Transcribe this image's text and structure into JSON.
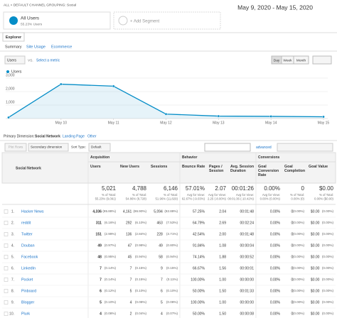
{
  "header": {
    "breadcrumb": "ALL » DEFAULT CHANNEL GROUPING: Social",
    "date_range": "May 9, 2020 - May 15, 2020"
  },
  "segments": {
    "name": "All Users",
    "share": "55.23% Users",
    "add": "+ Add Segment"
  },
  "tabs": [
    "Explorer"
  ],
  "subtabs": [
    "Summary",
    "Site Usage",
    "Ecommerce"
  ],
  "controls": {
    "metric": "Users",
    "vs": "VS.",
    "select": "Select a metric",
    "periods": [
      "Day",
      "Week",
      "Month"
    ]
  },
  "chart_data": {
    "type": "line",
    "categories": [
      null,
      "May 10",
      "May 11",
      "May 12",
      "May 13",
      "May 14",
      "May 15"
    ],
    "series": [
      {
        "name": "Users",
        "color": "#058dc7",
        "values": [
          80,
          2550,
          2400,
          330,
          180,
          160,
          130
        ]
      }
    ],
    "ylim": [
      0,
      3000
    ],
    "yticks": [
      {
        "value": 1000,
        "label": "1,000"
      },
      {
        "value": 2000,
        "label": "2,000"
      },
      {
        "value": 3000,
        "label": "3,000"
      }
    ],
    "grid": true
  },
  "dimension": {
    "label": "Primary Dimension:",
    "options": [
      "Social Network",
      "Landing Page",
      "Other"
    ]
  },
  "toolbar": {
    "plot_rows": "Plot Rows",
    "secondary": "Secondary dimension",
    "sort_label": "Sort Type:",
    "sort": "Default",
    "advanced": "advanced"
  },
  "table": {
    "dimension_header": "Social Network",
    "groups": [
      "Acquisition",
      "Behavior",
      "Conversions"
    ],
    "columns": [
      "Users",
      "New Users",
      "Sessions",
      "Bounce Rate",
      "Pages / Session",
      "Avg. Session Duration",
      "Goal Conversion Rate",
      "Goal Completions",
      "Goal Value"
    ],
    "totals": [
      [
        "5,021",
        "% of Total:",
        "55.23% (9,091)"
      ],
      [
        "4,788",
        "% of Total:",
        "54.86% (8,728)"
      ],
      [
        "6,146",
        "% of Total:",
        "51.96% (11,829)"
      ],
      [
        "57.01%",
        "Avg for View:",
        "62.67% (-9.03%)"
      ],
      [
        "2.07",
        "Avg for View:",
        "2.25 (-8.00%)"
      ],
      [
        "00:01:26",
        "Avg for View:",
        "00:01:36 (-10.42%)"
      ],
      [
        "0.00%",
        "Avg for View:",
        "0.00% (0.00%)"
      ],
      [
        "0",
        "% of Total:",
        "0.00% (0)"
      ],
      [
        "$0.00",
        "% of Total:",
        "0.00% ($0.00)"
      ]
    ],
    "rows": [
      {
        "index": "1.",
        "name": "Hacker News",
        "cells": [
          [
            "4,336",
            "(85.88%)"
          ],
          [
            "4,161",
            "(86.90%)"
          ],
          [
            "5,094",
            "(82.88%)"
          ],
          [
            "57.25%"
          ],
          [
            "2.04"
          ],
          [
            "00:01:48"
          ],
          [
            "0.00%"
          ],
          [
            "0",
            "(0.00%)"
          ],
          [
            "$0.00",
            "(0.00%)"
          ]
        ]
      },
      {
        "index": "2.",
        "name": "reddit",
        "cells": [
          [
            "311",
            "(6.16%)"
          ],
          [
            "292",
            "(6.10%)"
          ],
          [
            "463",
            "(7.53%)"
          ],
          [
            "64.79%"
          ],
          [
            "2.69"
          ],
          [
            "00:02:24"
          ],
          [
            "0.00%"
          ],
          [
            "0",
            "(0.00%)"
          ],
          [
            "$0.00",
            "(0.00%)"
          ]
        ]
      },
      {
        "index": "3.",
        "name": "Twitter",
        "cells": [
          [
            "151",
            "(2.99%)"
          ],
          [
            "136",
            "(2.84%)"
          ],
          [
            "228",
            "(3.71%)"
          ],
          [
            "42.54%"
          ],
          [
            "2.00"
          ],
          [
            "00:01:48"
          ],
          [
            "0.00%"
          ],
          [
            "0",
            "(0.00%)"
          ],
          [
            "$0.00",
            "(0.00%)"
          ]
        ]
      },
      {
        "index": "4.",
        "name": "Douban",
        "cells": [
          [
            "49",
            "(0.97%)"
          ],
          [
            "47",
            "(0.98%)"
          ],
          [
            "49",
            "(0.80%)"
          ],
          [
            "91.84%"
          ],
          [
            "1.08"
          ],
          [
            "00:00:04"
          ],
          [
            "0.00%"
          ],
          [
            "0",
            "(0.00%)"
          ],
          [
            "$0.00",
            "(0.00%)"
          ]
        ]
      },
      {
        "index": "5.",
        "name": "Facebook",
        "cells": [
          [
            "48",
            "(0.95%)"
          ],
          [
            "45",
            "(0.94%)"
          ],
          [
            "58",
            "(0.94%)"
          ],
          [
            "74.14%"
          ],
          [
            "1.88"
          ],
          [
            "00:00:52"
          ],
          [
            "0.00%"
          ],
          [
            "0",
            "(0.00%)"
          ],
          [
            "$0.00",
            "(0.00%)"
          ]
        ]
      },
      {
        "index": "6.",
        "name": "LinkedIn",
        "cells": [
          [
            "7",
            "(0.14%)"
          ],
          [
            "7",
            "(0.15%)"
          ],
          [
            "9",
            "(0.15%)"
          ],
          [
            "66.67%"
          ],
          [
            "1.56"
          ],
          [
            "00:00:01"
          ],
          [
            "0.00%"
          ],
          [
            "0",
            "(0.00%)"
          ],
          [
            "$0.00",
            "(0.00%)"
          ]
        ]
      },
      {
        "index": "7.",
        "name": "Pocket",
        "cells": [
          [
            "7",
            "(0.14%)"
          ],
          [
            "7",
            "(0.15%)"
          ],
          [
            "7",
            "(0.11%)"
          ],
          [
            "100.00%"
          ],
          [
            "1.00"
          ],
          [
            "00:00:00"
          ],
          [
            "0.00%"
          ],
          [
            "0",
            "(0.00%)"
          ],
          [
            "$0.00",
            "(0.00%)"
          ]
        ]
      },
      {
        "index": "8.",
        "name": "Pinboard",
        "cells": [
          [
            "6",
            "(0.12%)"
          ],
          [
            "5",
            "(0.10%)"
          ],
          [
            "6",
            "(0.10%)"
          ],
          [
            "50.00%"
          ],
          [
            "1.50"
          ],
          [
            "00:01:33"
          ],
          [
            "0.00%"
          ],
          [
            "0",
            "(0.00%)"
          ],
          [
            "$0.00",
            "(0.00%)"
          ]
        ]
      },
      {
        "index": "9.",
        "name": "Blogger",
        "cells": [
          [
            "5",
            "(0.10%)"
          ],
          [
            "4",
            "(0.08%)"
          ],
          [
            "5",
            "(0.08%)"
          ],
          [
            "100.00%"
          ],
          [
            "1.00"
          ],
          [
            "00:00:00"
          ],
          [
            "0.00%"
          ],
          [
            "0",
            "(0.00%)"
          ],
          [
            "$0.00",
            "(0.00%)"
          ]
        ]
      },
      {
        "index": "10.",
        "name": "Plurk",
        "cells": [
          [
            "4",
            "(0.08%)"
          ],
          [
            "2",
            "(0.04%)"
          ],
          [
            "4",
            "(0.07%)"
          ],
          [
            "50.00%"
          ],
          [
            "1.50"
          ],
          [
            "00:00:08"
          ],
          [
            "0.00%"
          ],
          [
            "0",
            "(0.00%)"
          ],
          [
            "$0.00",
            "(0.00%)"
          ]
        ]
      }
    ]
  }
}
